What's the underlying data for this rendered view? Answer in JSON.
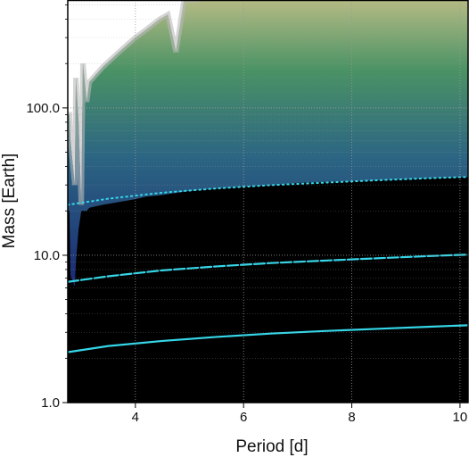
{
  "chart_data": {
    "type": "heatmap",
    "title": "",
    "xlabel": "Period [d]",
    "ylabel": "Mass [Earth]",
    "xlim": [
      2.75,
      10.15
    ],
    "ylim": [
      1.0,
      540
    ],
    "yscale": "log",
    "x_ticks": [
      4,
      6,
      8,
      10
    ],
    "x_tick_labels": [
      "4",
      "6",
      "8",
      "10"
    ],
    "y_ticks": [
      1.0,
      10.0,
      100.0
    ],
    "y_tick_labels": [
      "1.0",
      "10.0",
      "100.0"
    ],
    "grid": true,
    "colors": {
      "background": "#000000",
      "frame": "#000000",
      "grid": "#9a9a9a",
      "curves": "#35d6e8",
      "heat_low": "#2a3f9a",
      "heat_mid": "#3f8a6e",
      "heat_high": "#bfc587",
      "excluded": "#ffffff"
    },
    "heatmap_upper_boundary": {
      "x": [
        2.75,
        2.78,
        2.8,
        2.88,
        2.9,
        2.95,
        3.0,
        3.03,
        3.1,
        3.15,
        3.4,
        3.7,
        4.0,
        4.2,
        4.45,
        4.6,
        4.75,
        4.9,
        5.1,
        5.3,
        5.6,
        5.9,
        6.2,
        6.6,
        7.0,
        7.5,
        8.2,
        10.15
      ],
      "mass_low": [
        20,
        20,
        7.3,
        6.1,
        9,
        15,
        20,
        20,
        20,
        21,
        22,
        23,
        24,
        25,
        25.5,
        26,
        26.5,
        27,
        27.5,
        28,
        28.5,
        29,
        29.5,
        30,
        31,
        31.5,
        32,
        34
      ],
      "mass_high": [
        90,
        90,
        60,
        30,
        160,
        80,
        22,
        200,
        110,
        150,
        190,
        240,
        300,
        340,
        400,
        430,
        240,
        540,
        540,
        560,
        560,
        560,
        560,
        560,
        560,
        560,
        560,
        560
      ]
    },
    "series": [
      {
        "style": "dotted",
        "x": [
          2.75,
          3.5,
          4.5,
          5.5,
          6.5,
          7.5,
          8.5,
          9.5,
          10.15
        ],
        "y": [
          22.0,
          24.2,
          26.6,
          28.4,
          29.9,
          31.1,
          32.3,
          33.4,
          34.0
        ]
      },
      {
        "style": "dashed",
        "x": [
          2.75,
          3.5,
          4.5,
          5.5,
          6.5,
          7.5,
          8.5,
          9.5,
          10.15
        ],
        "y": [
          6.6,
          7.2,
          7.9,
          8.4,
          8.85,
          9.2,
          9.55,
          9.9,
          10.1
        ]
      },
      {
        "style": "solid",
        "x": [
          2.75,
          3.5,
          4.5,
          5.5,
          6.5,
          7.5,
          8.5,
          9.5,
          10.15
        ],
        "y": [
          2.2,
          2.42,
          2.62,
          2.79,
          2.94,
          3.06,
          3.17,
          3.28,
          3.35
        ]
      }
    ]
  }
}
